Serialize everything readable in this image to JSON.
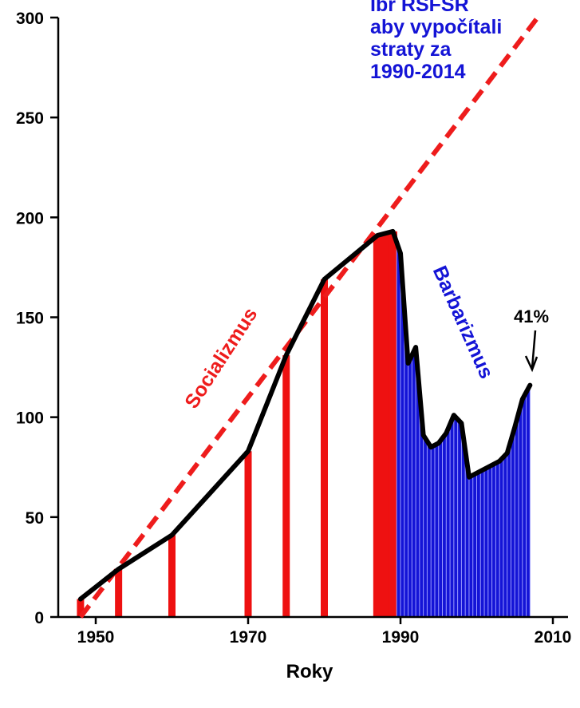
{
  "chart_data": {
    "type": "line",
    "title": "",
    "xlabel": "Roky",
    "ylabel": "",
    "xlim": [
      1947,
      2010
    ],
    "ylim": [
      0,
      300
    ],
    "x_ticks": [
      1950,
      1970,
      1990,
      2010
    ],
    "y_ticks": [
      0,
      50,
      100,
      150,
      200,
      250,
      300
    ],
    "grid": false,
    "series": [
      {
        "name": "",
        "style": "solid",
        "color": "#000000",
        "x": [
          1948,
          1953,
          1960,
          1970,
          1975,
          1980,
          1987,
          1989,
          1990,
          1991,
          1992,
          1993,
          1994,
          1995,
          1996,
          1997,
          1998,
          1999,
          2000,
          2001,
          2002,
          2003,
          2004,
          2005,
          2006,
          2007
        ],
        "y": [
          9,
          24,
          41,
          83,
          131,
          169,
          191,
          193,
          182,
          127,
          135,
          91,
          85,
          87,
          92,
          101,
          97,
          70,
          72,
          74,
          76,
          78,
          82,
          95,
          109,
          116
        ]
      },
      {
        "name": "Socializmus",
        "style": "dashed",
        "color": "#ee1c1c",
        "x": [
          1948,
          2008
        ],
        "y": [
          0,
          300
        ]
      }
    ],
    "filled_bars": {
      "socialism": {
        "color": "#ee1111",
        "years": [
          1948,
          1953,
          1960,
          1970,
          1975,
          1980,
          1987,
          1988,
          1989
        ]
      },
      "barbarism": {
        "color": "#1414d6",
        "stripe_color": "#9b9bff",
        "x_range": [
          1989.5,
          2007
        ]
      }
    },
    "annotations": {
      "socialism_label": "Socializmus",
      "barbarism_label": "Barbarizmus",
      "note_lines": [
        "Ibr RSFSR",
        "aby vypočítali",
        "straty za",
        "1990-2014"
      ],
      "percent_label": "41%"
    }
  }
}
